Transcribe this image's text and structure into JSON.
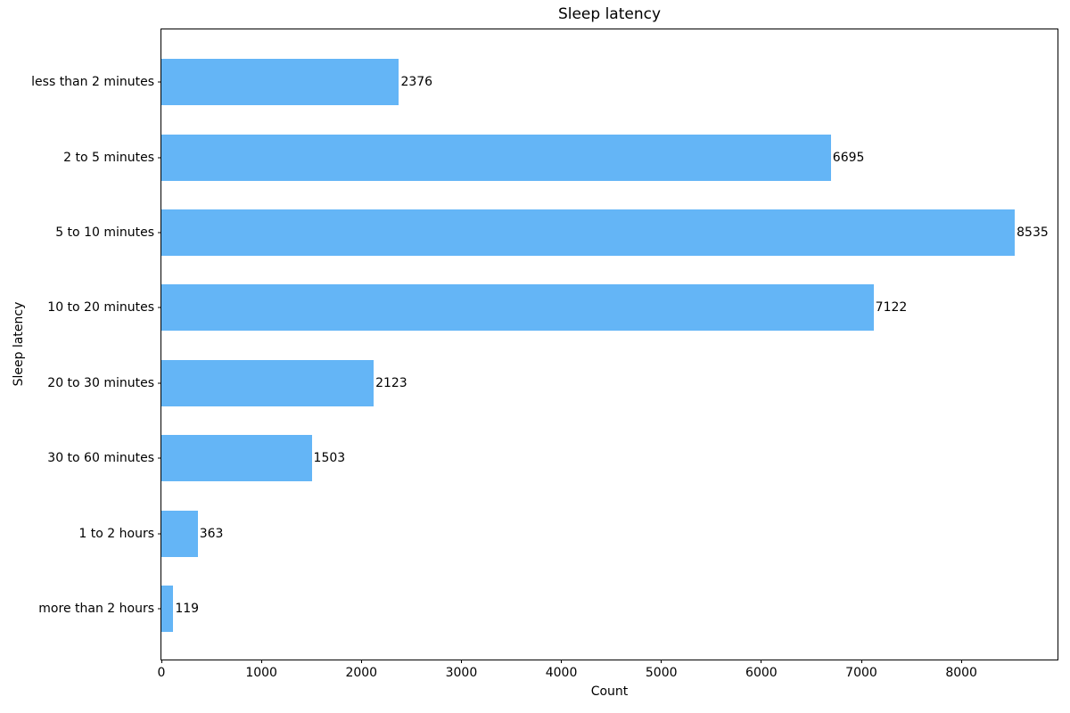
{
  "chart_data": {
    "type": "bar",
    "orientation": "horizontal",
    "title": "Sleep latency",
    "xlabel": "Count",
    "ylabel": "Sleep latency",
    "categories": [
      "less than 2 minutes",
      "2 to 5 minutes",
      "5 to 10 minutes",
      "10 to 20 minutes",
      "20 to 30 minutes",
      "30 to 60 minutes",
      "1 to 2 hours",
      "more than 2 hours"
    ],
    "values": [
      2376,
      6695,
      8535,
      7122,
      2123,
      1503,
      363,
      119
    ],
    "value_labels": [
      "2376",
      "6695",
      "8535",
      "7122",
      "2123",
      "1503",
      "363",
      "119"
    ],
    "xticks": [
      0,
      1000,
      2000,
      3000,
      4000,
      5000,
      6000,
      7000,
      8000
    ],
    "xtick_labels": [
      "0",
      "1000",
      "2000",
      "3000",
      "4000",
      "5000",
      "6000",
      "7000",
      "8000"
    ],
    "xlim": [
      0,
      8961.75
    ],
    "grid": false,
    "legend": null,
    "bar_color": "#64B5F6",
    "axis_color": "#000000",
    "text_color": "#000000"
  }
}
